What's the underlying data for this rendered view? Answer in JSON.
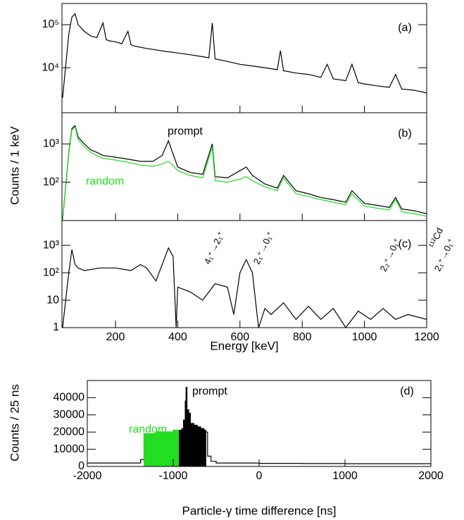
{
  "chart_data": [
    {
      "type": "line",
      "label": "(a)",
      "log_y": true,
      "xlim": [
        28,
        1200
      ],
      "ylim": [
        900,
        310000
      ],
      "yticks": [
        {
          "value": 10000,
          "label": "10⁴"
        },
        {
          "value": 100000,
          "label": "10⁵"
        }
      ],
      "x": [
        30,
        50,
        60,
        70,
        80,
        100,
        120,
        140,
        160,
        170,
        180,
        200,
        220,
        240,
        250,
        260,
        280,
        300,
        330,
        360,
        400,
        440,
        480,
        500,
        511,
        520,
        560,
        600,
        640,
        680,
        720,
        730,
        740,
        780,
        820,
        860,
        880,
        900,
        940,
        960,
        980,
        1000,
        1040,
        1080,
        1100,
        1120,
        1160,
        1200
      ],
      "series": [
        {
          "color": "#000000",
          "values": [
            2000,
            60000,
            150000,
            180000,
            100000,
            70000,
            55000,
            50000,
            110000,
            45000,
            42000,
            40000,
            36000,
            70000,
            34000,
            32000,
            30000,
            28000,
            26000,
            24000,
            22000,
            20000,
            18000,
            17000,
            110000,
            16000,
            14000,
            12000,
            11000,
            10000,
            9000,
            25000,
            8500,
            7500,
            7000,
            6000,
            12000,
            5500,
            5000,
            12000,
            4500,
            4200,
            3800,
            3500,
            7000,
            3200,
            3000,
            2600
          ]
        }
      ]
    },
    {
      "type": "line",
      "label": "(b)",
      "log_y": true,
      "ylabel": "Counts / 1 keV",
      "xlim": [
        28,
        1200
      ],
      "ylim": [
        10,
        6500
      ],
      "yticks": [
        {
          "value": 100,
          "label": "10²"
        },
        {
          "value": 1000,
          "label": "10³"
        }
      ],
      "x": [
        30,
        50,
        60,
        70,
        80,
        100,
        120,
        140,
        160,
        200,
        240,
        280,
        320,
        350,
        370,
        380,
        400,
        440,
        480,
        511,
        520,
        560,
        600,
        620,
        640,
        680,
        720,
        740,
        780,
        820,
        860,
        900,
        940,
        960,
        1000,
        1040,
        1080,
        1100,
        1120,
        1160,
        1200
      ],
      "series": [
        {
          "name": "prompt",
          "color": "#000000",
          "values": [
            10,
            600,
            2500,
            3000,
            1500,
            1000,
            700,
            600,
            500,
            450,
            400,
            350,
            350,
            500,
            1200,
            700,
            250,
            180,
            160,
            1000,
            140,
            130,
            200,
            250,
            150,
            90,
            70,
            150,
            60,
            50,
            40,
            35,
            30,
            60,
            28,
            25,
            22,
            40,
            20,
            18,
            15
          ]
        },
        {
          "name": "random",
          "color": "#22dd22",
          "values": [
            10,
            550,
            2300,
            2800,
            1300,
            850,
            600,
            500,
            420,
            380,
            330,
            280,
            260,
            300,
            350,
            300,
            200,
            150,
            130,
            800,
            110,
            100,
            120,
            140,
            110,
            75,
            60,
            130,
            50,
            42,
            35,
            30,
            26,
            50,
            24,
            21,
            19,
            35,
            17,
            15,
            13
          ]
        }
      ]
    },
    {
      "type": "line",
      "label": "(c)",
      "log_y": true,
      "xlabel": "Energy [keV]",
      "xlim": [
        28,
        1200
      ],
      "ylim": [
        1,
        8000
      ],
      "xticks": [
        200,
        400,
        600,
        800,
        1000,
        1200
      ],
      "yticks": [
        1,
        10,
        {
          "value": 100,
          "label": "10²"
        },
        {
          "value": 1000,
          "label": "10³"
        }
      ],
      "x": [
        30,
        50,
        60,
        70,
        80,
        100,
        150,
        200,
        250,
        280,
        300,
        330,
        350,
        370,
        385,
        395,
        400,
        440,
        480,
        520,
        560,
        580,
        600,
        620,
        640,
        655,
        660,
        680,
        700,
        740,
        780,
        820,
        860,
        900,
        940,
        980,
        1020,
        1060,
        1100,
        1140,
        1200
      ],
      "series": [
        {
          "color": "#000000",
          "values": [
            1,
            100,
            700,
            200,
            150,
            120,
            150,
            150,
            120,
            200,
            150,
            50,
            200,
            800,
            400,
            1,
            30,
            20,
            10,
            40,
            30,
            3,
            100,
            300,
            100,
            3,
            1,
            5,
            3,
            8,
            2,
            6,
            2,
            5,
            1,
            4,
            2,
            5,
            2,
            3,
            2
          ]
        }
      ],
      "annotations": [
        "4₁⁺→2₁⁺",
        "2₁⁺→0₁⁺",
        "2₂⁺→0₁⁺",
        "¹¹²Cd",
        "2₁⁺→0₁⁺"
      ]
    },
    {
      "type": "step",
      "label": "(d)",
      "log_y": false,
      "xlabel": "Particle-γ time difference [ns]",
      "ylabel": "Counts / 25 ns",
      "xlim": [
        -2000,
        2000
      ],
      "ylim": [
        0,
        50000
      ],
      "xticks": [
        -2000,
        -1000,
        0,
        1000,
        2000
      ],
      "yticks": [
        0,
        10000,
        20000,
        30000,
        40000
      ],
      "series": [
        {
          "color": "#000000",
          "fill": false,
          "x": [
            -2000,
            -1400,
            -1380,
            -1340,
            -1200,
            -1000,
            -930,
            -900,
            -880,
            -860,
            -850,
            -840,
            -820,
            -800,
            -760,
            -720,
            -680,
            -640,
            -620,
            -600,
            -560,
            -500,
            0,
            500,
            1000,
            1500,
            2000
          ],
          "values": [
            2000,
            2000,
            4000,
            19000,
            20000,
            21000,
            21000,
            22000,
            27000,
            38000,
            46000,
            33000,
            31000,
            25000,
            24000,
            23000,
            22000,
            21000,
            20000,
            6000,
            3000,
            2000,
            1800,
            1700,
            1600,
            1600,
            1600
          ]
        },
        {
          "name": "random",
          "color": "#22dd22",
          "fill": true,
          "x": [
            -1340,
            -1200,
            -1000,
            -930
          ],
          "values": [
            19000,
            20000,
            21000,
            21000
          ]
        },
        {
          "name": "prompt",
          "color": "#000000",
          "fill": true,
          "x": [
            -930,
            -900,
            -880,
            -860,
            -850,
            -840,
            -820,
            -800,
            -760,
            -720,
            -680,
            -640,
            -620
          ],
          "values": [
            21000,
            22000,
            27000,
            38000,
            46000,
            33000,
            31000,
            25000,
            24000,
            23000,
            22000,
            21000,
            20000
          ]
        }
      ]
    }
  ]
}
